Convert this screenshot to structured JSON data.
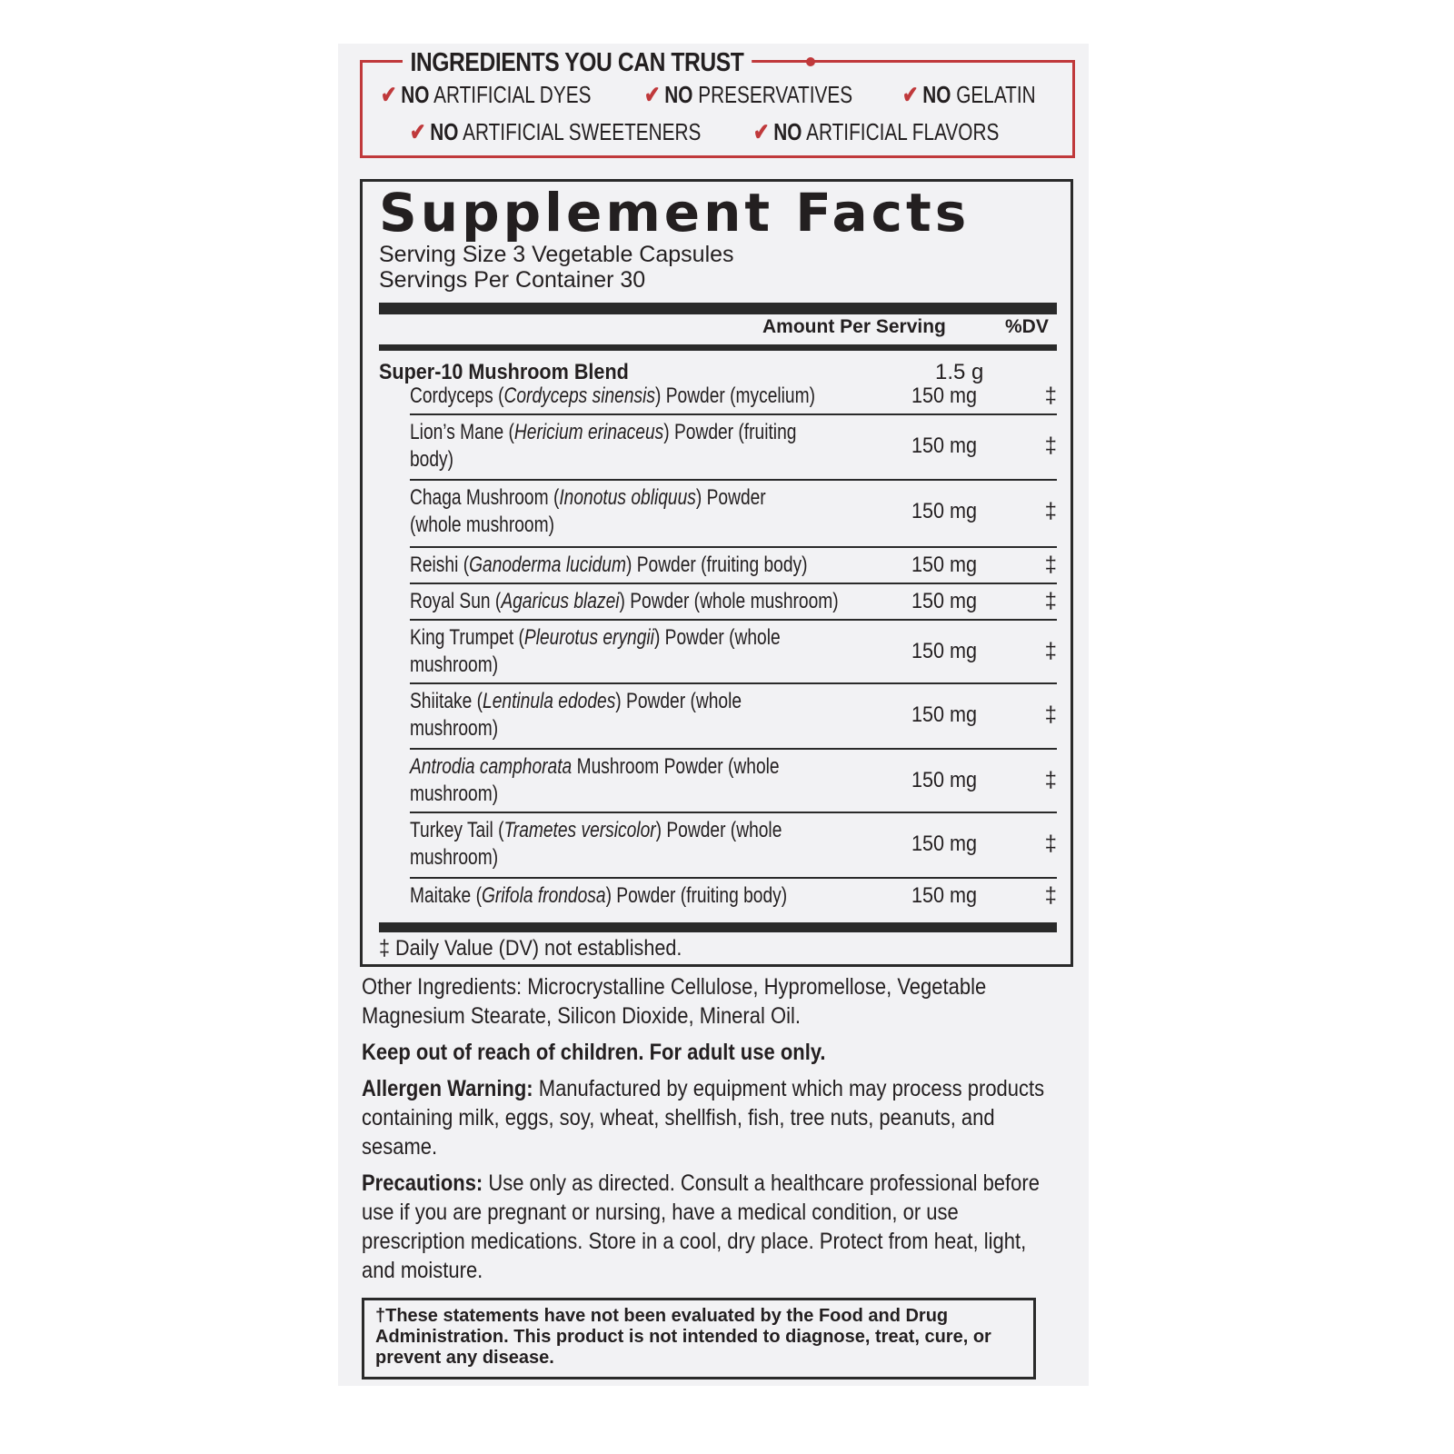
{
  "trust": {
    "title": "INGREDIENTS YOU CAN TRUST",
    "claims": [
      {
        "no": "NO",
        "text": "ARTIFICIAL DYES"
      },
      {
        "no": "NO",
        "text": "PRESERVATIVES"
      },
      {
        "no": "NO",
        "text": "GELATIN"
      },
      {
        "no": "NO",
        "text": "ARTIFICIAL SWEETENERS"
      },
      {
        "no": "NO",
        "text": "ARTIFICIAL FLAVORS"
      }
    ],
    "check_icon": "✔",
    "accent": "#c0393b"
  },
  "facts": {
    "title": "Supplement Facts",
    "serving_size": "Serving Size 3 Vegetable Capsules",
    "servings": "Servings Per Container 30",
    "amount_header": "Amount Per Serving",
    "dv_header": "%DV",
    "blend": {
      "name": "Super-10 Mushroom Blend",
      "amount": "1.5 g"
    },
    "rows": [
      {
        "pre": "Cordyceps (",
        "ital": "Cordyceps sinensis",
        "post": ") Powder (mycelium)",
        "amount": "150 mg",
        "dv": "‡"
      },
      {
        "pre": "Lion’s Mane (",
        "ital": "Hericium erinaceus",
        "post": ") Powder (fruiting body)",
        "amount": "150 mg",
        "dv": "‡"
      },
      {
        "pre": "Chaga Mushroom (",
        "ital": "Inonotus obliquus",
        "post": ") Powder (whole mushroom)",
        "amount": "150 mg",
        "dv": "‡"
      },
      {
        "pre": "Reishi (",
        "ital": "Ganoderma lucidum",
        "post": ") Powder (fruiting body)",
        "amount": "150 mg",
        "dv": "‡"
      },
      {
        "pre": "Royal Sun (",
        "ital": "Agaricus blazei",
        "post": ") Powder (whole mushroom)",
        "amount": "150 mg",
        "dv": "‡"
      },
      {
        "pre": "King Trumpet (",
        "ital": "Pleurotus eryngii",
        "post": ") Powder (whole mushroom)",
        "amount": "150 mg",
        "dv": "‡"
      },
      {
        "pre": "Shiitake (",
        "ital": "Lentinula edodes",
        "post": ") Powder (whole mushroom)",
        "amount": "150 mg",
        "dv": "‡"
      },
      {
        "pre": "",
        "ital": "Antrodia camphorata",
        "post": " Mushroom Powder (whole mushroom)",
        "amount": "150 mg",
        "dv": "‡"
      },
      {
        "pre": "Turkey Tail (",
        "ital": "Trametes versicolor",
        "post": ") Powder (whole mushroom)",
        "amount": "150 mg",
        "dv": "‡"
      },
      {
        "pre": "Maitake (",
        "ital": "Grifola frondosa",
        "post": ") Powder (fruiting body)",
        "amount": "150 mg",
        "dv": "‡"
      }
    ],
    "footnote": "‡ Daily Value (DV) not established."
  },
  "other": "Other Ingredients: Microcrystalline Cellulose, Hypromellose, Vegetable Magnesium Stearate, Silicon Dioxide, Mineral Oil.",
  "keep_out": "Keep out of reach of children. For adult use only.",
  "allergen": {
    "label": "Allergen Warning:",
    "text": " Manufactured by equipment which may process products containing milk, eggs, soy, wheat, shellfish, fish, tree nuts, peanuts, and sesame."
  },
  "precautions": {
    "label": "Precautions:",
    "text": " Use only as directed. Consult a healthcare professional before use if you are pregnant or nursing, have a medical condition, or use prescription medications. Store in a cool, dry place. Protect from heat, light, and moisture."
  },
  "disclaimer": "†These statements have not been evaluated by the Food and Drug Administration. This product is not intended to diagnose, treat, cure, or prevent any disease."
}
